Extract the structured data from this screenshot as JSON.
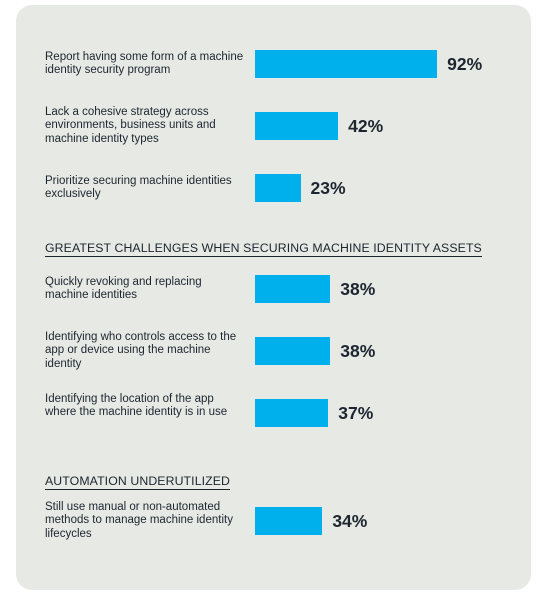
{
  "chart_data": {
    "type": "bar",
    "orientation": "horizontal",
    "xlim": [
      0,
      100
    ],
    "unit": "%",
    "groups": [
      {
        "heading": "",
        "items": [
          {
            "label": "Report having some form of a machine identity security program",
            "value": 92,
            "value_label": "92%"
          },
          {
            "label": "Lack a cohesive strategy across environments, business units and machine identity types",
            "value": 42,
            "value_label": "42%"
          },
          {
            "label": "Prioritize securing machine identities exclusively",
            "value": 23,
            "value_label": "23%"
          }
        ]
      },
      {
        "heading": "GREATEST CHALLENGES WHEN SECURING MACHINE IDENTITY ASSETS",
        "items": [
          {
            "label": "Quickly revoking and replacing machine identities",
            "value": 38,
            "value_label": "38%"
          },
          {
            "label": "Identifying who controls access to the app or device using the machine identity",
            "value": 38,
            "value_label": "38%"
          },
          {
            "label": "Identifying the location of the app where the machine identity is in use",
            "value": 37,
            "value_label": "37%"
          }
        ]
      },
      {
        "heading": "AUTOMATION UNDERUTILIZED",
        "items": [
          {
            "label": "Still use manual or non-automated methods to manage machine identity lifecycles",
            "value": 34,
            "value_label": "34%"
          }
        ]
      }
    ],
    "colors": {
      "bar": "#00b0ec",
      "background": "#e6e9e4",
      "text": "#1d2530"
    }
  }
}
